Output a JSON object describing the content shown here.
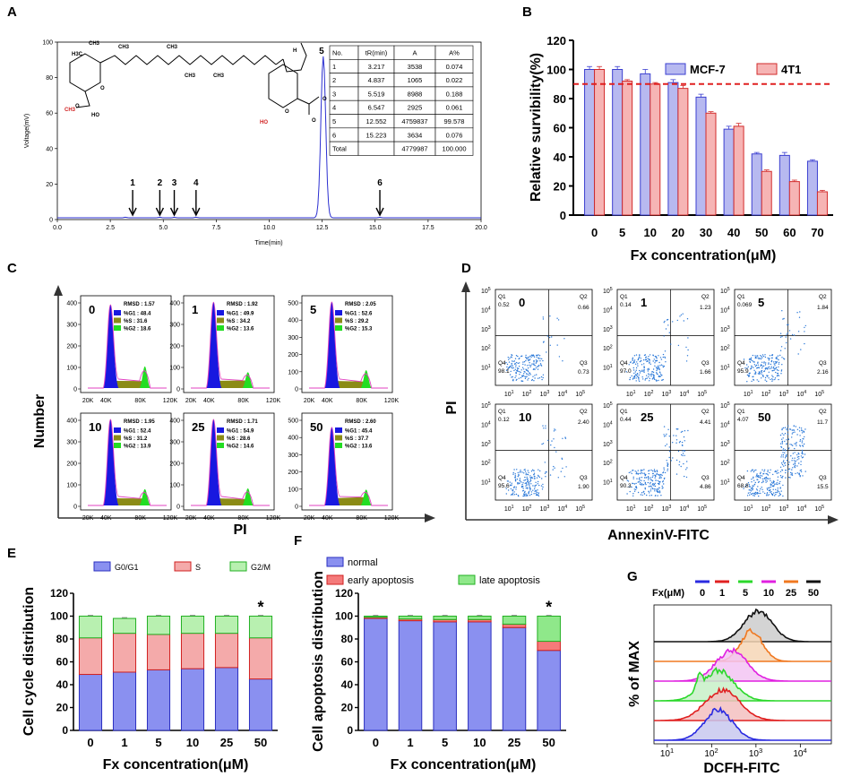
{
  "panel_labels": [
    "A",
    "B",
    "C",
    "D",
    "E",
    "F",
    "G"
  ],
  "chart_data": [
    {
      "id": "A",
      "type": "line",
      "ylabel": "Voltage(mV)",
      "xlabel": "Time(min)",
      "ylim": [
        0,
        100
      ],
      "xlim": [
        0,
        20
      ],
      "yticks": [
        "100",
        "80",
        "60",
        "40",
        "20",
        "0"
      ],
      "xticks": [
        "0.0",
        "2.5",
        "5.0",
        "7.5",
        "10.0",
        "12.5",
        "15.0",
        "17.5",
        "20.0"
      ],
      "peaks": [
        {
          "label": "1",
          "t": 3.217
        },
        {
          "label": "2",
          "t": 4.837
        },
        {
          "label": "3",
          "t": 5.519
        },
        {
          "label": "4",
          "t": 6.547
        },
        {
          "label": "5",
          "t": 12.552
        },
        {
          "label": "6",
          "t": 15.223
        }
      ],
      "main_peak_height": 91,
      "table": {
        "headers": [
          "No.",
          "tR(min)",
          "A",
          "A%"
        ],
        "rows": [
          [
            "1",
            "3.217",
            "3538",
            "0.074"
          ],
          [
            "2",
            "4.837",
            "1065",
            "0.022"
          ],
          [
            "3",
            "5.519",
            "8988",
            "0.188"
          ],
          [
            "4",
            "6.547",
            "2925",
            "0.061"
          ],
          [
            "5",
            "12.552",
            "4759837",
            "99.578"
          ],
          [
            "6",
            "15.223",
            "3634",
            "0.076"
          ],
          [
            "Total",
            "",
            "4779987",
            "100.000"
          ]
        ]
      },
      "structure_labels": [
        "H3C",
        "CH3",
        "CH3",
        "CH3",
        "CH3",
        "CH3",
        "CH3",
        "HO",
        "H",
        "O",
        "O",
        "O",
        "O",
        "O",
        "HO"
      ],
      "structure_note": "fucoxanthin structure"
    },
    {
      "id": "B",
      "type": "bar",
      "ylabel": "Relative survibility(%)",
      "xlabel": "Fx concentration(μM)",
      "ylim": [
        0,
        120
      ],
      "yticks": [
        "0",
        "20",
        "40",
        "60",
        "80",
        "100",
        "120"
      ],
      "categories": [
        "0",
        "5",
        "10",
        "20",
        "30",
        "40",
        "50",
        "60",
        "70"
      ],
      "series": [
        {
          "name": "MCF-7",
          "color": "#b7b9f0",
          "edge": "#3b3fd0",
          "values": [
            100,
            100,
            97,
            91,
            81,
            59,
            42,
            41,
            37
          ],
          "errors": [
            2,
            2,
            3,
            2,
            2,
            2,
            1,
            2,
            1
          ]
        },
        {
          "name": "4T1",
          "color": "#f6b4b4",
          "edge": "#d22b2b",
          "values": [
            100,
            92,
            90,
            87,
            70,
            61,
            30,
            23,
            16
          ],
          "errors": [
            2,
            1,
            1,
            2,
            1,
            2,
            1,
            1,
            1
          ]
        }
      ],
      "reference_line": 90
    },
    {
      "id": "C",
      "type": "histogram",
      "ylabel": "Number",
      "xlabel": "PI",
      "xticks": [
        "20K",
        "40K",
        "80K",
        "120K"
      ],
      "stat_labels": [
        "RMSD :",
        "%G1 :",
        "%S :",
        "%G2 :"
      ],
      "panels": [
        {
          "label": "0",
          "rmsd": "1.57",
          "g1": "48.4",
          "s": "31.6",
          "g2": "18.6",
          "yticks": [
            "0",
            "100",
            "200",
            "300",
            "400"
          ]
        },
        {
          "label": "1",
          "rmsd": "1.92",
          "g1": "49.9",
          "s": "34.2",
          "g2": "13.6",
          "yticks": [
            "0",
            "100",
            "200",
            "300",
            "400"
          ]
        },
        {
          "label": "5",
          "rmsd": "2.05",
          "g1": "52.6",
          "s": "29.2",
          "g2": "15.3",
          "yticks": [
            "0",
            "100",
            "200",
            "300",
            "400",
            "500"
          ]
        },
        {
          "label": "10",
          "rmsd": "1.95",
          "g1": "52.4",
          "s": "31.2",
          "g2": "13.9",
          "yticks": [
            "0",
            "100",
            "200",
            "300",
            "400"
          ]
        },
        {
          "label": "25",
          "rmsd": "1.71",
          "g1": "54.9",
          "s": "28.6",
          "g2": "14.6",
          "yticks": [
            "0",
            "100",
            "200",
            "300",
            "400"
          ]
        },
        {
          "label": "50",
          "rmsd": "2.60",
          "g1": "45.4",
          "s": "37.7",
          "g2": "13.6",
          "yticks": [
            "0",
            "100",
            "200",
            "300",
            "400",
            "500"
          ]
        }
      ]
    },
    {
      "id": "D",
      "type": "scatter",
      "ylabel": "PI",
      "xlabel": "AnnexinV-FITC",
      "axis_exponents": [
        "0",
        "1",
        "2",
        "3",
        "4",
        "5"
      ],
      "panels": [
        {
          "label": "0",
          "q1": "0.52",
          "q2": "0.66",
          "q3": "0.73",
          "q4": "98.1"
        },
        {
          "label": "1",
          "q1": "0.14",
          "q2": "1.23",
          "q3": "1.66",
          "q4": "97.0"
        },
        {
          "label": "5",
          "q1": "0.069",
          "q2": "1.84",
          "q3": "2.16",
          "q4": "95.9"
        },
        {
          "label": "10",
          "q1": "0.12",
          "q2": "2.40",
          "q3": "1.90",
          "q4": "95.6"
        },
        {
          "label": "25",
          "q1": "0.44",
          "q2": "4.41",
          "q3": "4.86",
          "q4": "90.3"
        },
        {
          "label": "50",
          "q1": "4.07",
          "q2": "11.7",
          "q3": "15.5",
          "q4": "68.8"
        }
      ],
      "quad_names": [
        "Q1",
        "Q2",
        "Q3",
        "Q4"
      ]
    },
    {
      "id": "E",
      "type": "bar",
      "stacked": true,
      "ylabel": "Cell cycle distribution",
      "xlabel": "Fx concentration(μM)",
      "ylim": [
        0,
        120
      ],
      "yticks": [
        "0",
        "20",
        "40",
        "60",
        "80",
        "100",
        "120"
      ],
      "categories": [
        "0",
        "1",
        "5",
        "10",
        "25",
        "50"
      ],
      "series": [
        {
          "name": "G0/G1",
          "color": "#8a90f0",
          "edge": "#2b2fc0",
          "values": [
            49,
            51,
            53,
            54,
            55,
            45
          ]
        },
        {
          "name": "S",
          "color": "#f4aaaa",
          "edge": "#d02020",
          "values": [
            32,
            34,
            31,
            31,
            30,
            36
          ]
        },
        {
          "name": "G2/M",
          "color": "#b8f0b0",
          "edge": "#22b022",
          "values": [
            19,
            13,
            16,
            15,
            15,
            19
          ]
        }
      ],
      "annotation": {
        "category": "50",
        "text": "*"
      }
    },
    {
      "id": "F",
      "type": "bar",
      "stacked": true,
      "ylabel": "Cell apoptosis distribution",
      "xlabel": "Fx concentration(μM)",
      "ylim": [
        0,
        120
      ],
      "yticks": [
        "0",
        "20",
        "40",
        "60",
        "80",
        "100",
        "120"
      ],
      "categories": [
        "0",
        "1",
        "5",
        "10",
        "25",
        "50"
      ],
      "series": [
        {
          "name": "normal",
          "color": "#8a90f0",
          "edge": "#2b2fc0",
          "values": [
            98,
            96,
            95,
            95,
            90,
            70
          ]
        },
        {
          "name": "early apoptosis",
          "color": "#f47a7a",
          "edge": "#d02020",
          "values": [
            1,
            1.5,
            2,
            2,
            3,
            8
          ]
        },
        {
          "name": "late apoptosis",
          "color": "#8fe88a",
          "edge": "#22b022",
          "values": [
            1,
            2.5,
            3,
            3,
            7,
            22
          ]
        }
      ],
      "annotation": {
        "category": "50",
        "text": "*"
      }
    },
    {
      "id": "G",
      "type": "histogram-overlay",
      "ylabel": "% of MAX",
      "xlabel": "DCFH-FITC",
      "legend_title": "Fx(μM)",
      "xtick_exponents": [
        "1",
        "2",
        "3",
        "4"
      ],
      "series": [
        {
          "name": "0",
          "color": "#2a2ae0",
          "fill": "#c8c8ee"
        },
        {
          "name": "1",
          "color": "#e02020",
          "fill": "#f3c0c0"
        },
        {
          "name": "5",
          "color": "#2ad82a",
          "fill": "#c8f0c8"
        },
        {
          "name": "10",
          "color": "#e020e0",
          "fill": "#f3c4f3"
        },
        {
          "name": "25",
          "color": "#f07820",
          "fill": "#f6d6b6"
        },
        {
          "name": "50",
          "color": "#111111",
          "fill": "#cccccc"
        }
      ]
    }
  ]
}
